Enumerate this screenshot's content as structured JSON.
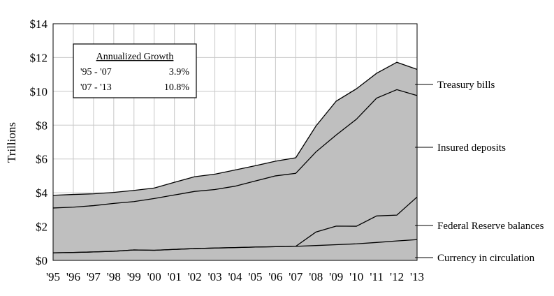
{
  "chart_data": {
    "type": "area",
    "title": "",
    "xlabel": "",
    "ylabel": "Trillions",
    "ylim": [
      0,
      14
    ],
    "y_ticks": [
      "$0",
      "$2",
      "$4",
      "$6",
      "$8",
      "$10",
      "$12",
      "$14"
    ],
    "y_tick_values": [
      0,
      2,
      4,
      6,
      8,
      10,
      12,
      14
    ],
    "categories": [
      "'95",
      "'96",
      "'97",
      "'98",
      "'99",
      "'00",
      "'01",
      "'02",
      "'03",
      "'04",
      "'05",
      "'06",
      "'07",
      "'08",
      "'09",
      "'10",
      "'11",
      "'12",
      "'13"
    ],
    "grid": true,
    "fill_color": "#bfbfbf",
    "line_color": "#000000",
    "stacking": "cumulative",
    "series": [
      {
        "name": "Currency in circulation",
        "values": [
          0.45,
          0.47,
          0.5,
          0.54,
          0.62,
          0.6,
          0.65,
          0.7,
          0.73,
          0.76,
          0.79,
          0.81,
          0.83,
          0.88,
          0.93,
          0.98,
          1.06,
          1.15,
          1.23
        ]
      },
      {
        "name": "Federal Reserve balances",
        "values": [
          0.45,
          0.47,
          0.5,
          0.54,
          0.62,
          0.6,
          0.65,
          0.7,
          0.73,
          0.76,
          0.79,
          0.81,
          0.83,
          1.68,
          2.03,
          2.02,
          2.63,
          2.68,
          3.75
        ]
      },
      {
        "name": "Insured deposits",
        "values": [
          3.1,
          3.15,
          3.24,
          3.37,
          3.48,
          3.66,
          3.87,
          4.08,
          4.19,
          4.39,
          4.7,
          5.0,
          5.15,
          6.42,
          7.42,
          8.35,
          9.6,
          10.1,
          9.75
        ]
      },
      {
        "name": "Treasury bills",
        "values": [
          3.85,
          3.9,
          3.94,
          4.02,
          4.14,
          4.28,
          4.62,
          4.95,
          5.1,
          5.35,
          5.6,
          5.87,
          6.07,
          7.95,
          9.42,
          10.15,
          11.07,
          11.72,
          11.3
        ]
      }
    ],
    "inset_table": {
      "title": "Annualized Growth",
      "rows": [
        {
          "period": "'95 - '07",
          "value": "3.9%"
        },
        {
          "period": "'07 - '13",
          "value": "10.8%"
        }
      ]
    }
  }
}
